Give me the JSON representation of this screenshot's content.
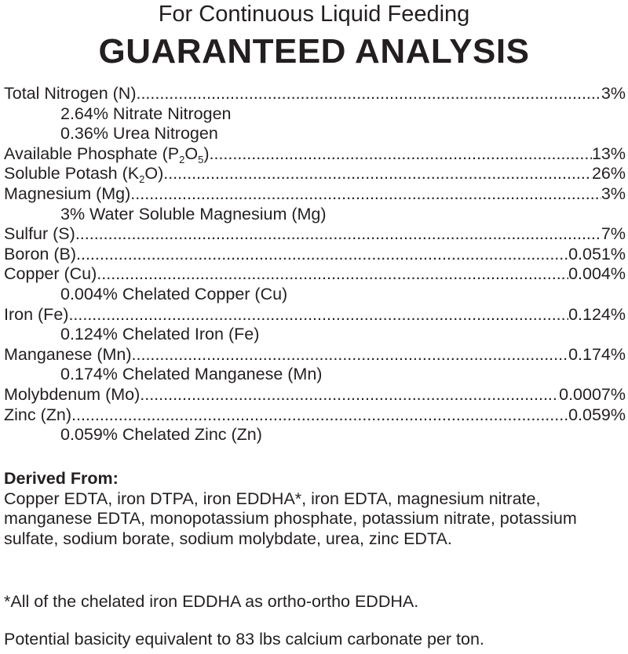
{
  "header": {
    "subtitle": "For Continuous Liquid Feeding",
    "title": "GUARANTEED ANALYSIS"
  },
  "analysis": [
    {
      "label": "Total Nitrogen (N)",
      "value": "3%"
    },
    {
      "label": "2.64% Nitrate Nitrogen",
      "indent": true
    },
    {
      "label": "0.36% Urea Nitrogen",
      "indent": true
    },
    {
      "label": "Available Phosphate (P",
      "sub1": "2",
      "mid": "O",
      "sub2": "5",
      "tail": ")",
      "value": "13%"
    },
    {
      "label": "Soluble Potash (K",
      "sub1": "2",
      "mid": "O)",
      "value": "26%"
    },
    {
      "label": "Magnesium (Mg) ",
      "value": "3%"
    },
    {
      "label": "3% Water Soluble Magnesium (Mg)",
      "indent": true
    },
    {
      "label": "Sulfur (S) ",
      "value": "7%"
    },
    {
      "label": "Boron (B) ",
      "value": "0.051%"
    },
    {
      "label": "Copper (Cu)",
      "value": "0.004%"
    },
    {
      "label": "0.004% Chelated Copper (Cu)",
      "indent": true
    },
    {
      "label": "Iron (Fe)",
      "value": "0.124%"
    },
    {
      "label": "0.124% Chelated Iron (Fe)",
      "indent": true
    },
    {
      "label": "Manganese (Mn) ",
      "value": "0.174%"
    },
    {
      "label": "0.174% Chelated Manganese (Mn)",
      "indent": true
    },
    {
      "label": "Molybdenum (Mo) ",
      "value": "0.0007%"
    },
    {
      "label": "Zinc (Zn)",
      "value": "0.059%"
    },
    {
      "label": "0.059% Chelated Zinc (Zn)",
      "indent": true
    }
  ],
  "derived": {
    "heading": "Derived From:",
    "text": "Copper EDTA, iron DTPA, iron EDDHA*, iron EDTA, magnesium nitrate, manganese EDTA, monopotassium phosphate, potassium nitrate, potassium sulfate, sodium borate, sodium molybdate, urea, zinc EDTA."
  },
  "footnote": "*All of the chelated iron EDDHA as ortho-ortho EDDHA.",
  "basicity": "Potential basicity equivalent to 83 lbs calcium carbonate per ton."
}
